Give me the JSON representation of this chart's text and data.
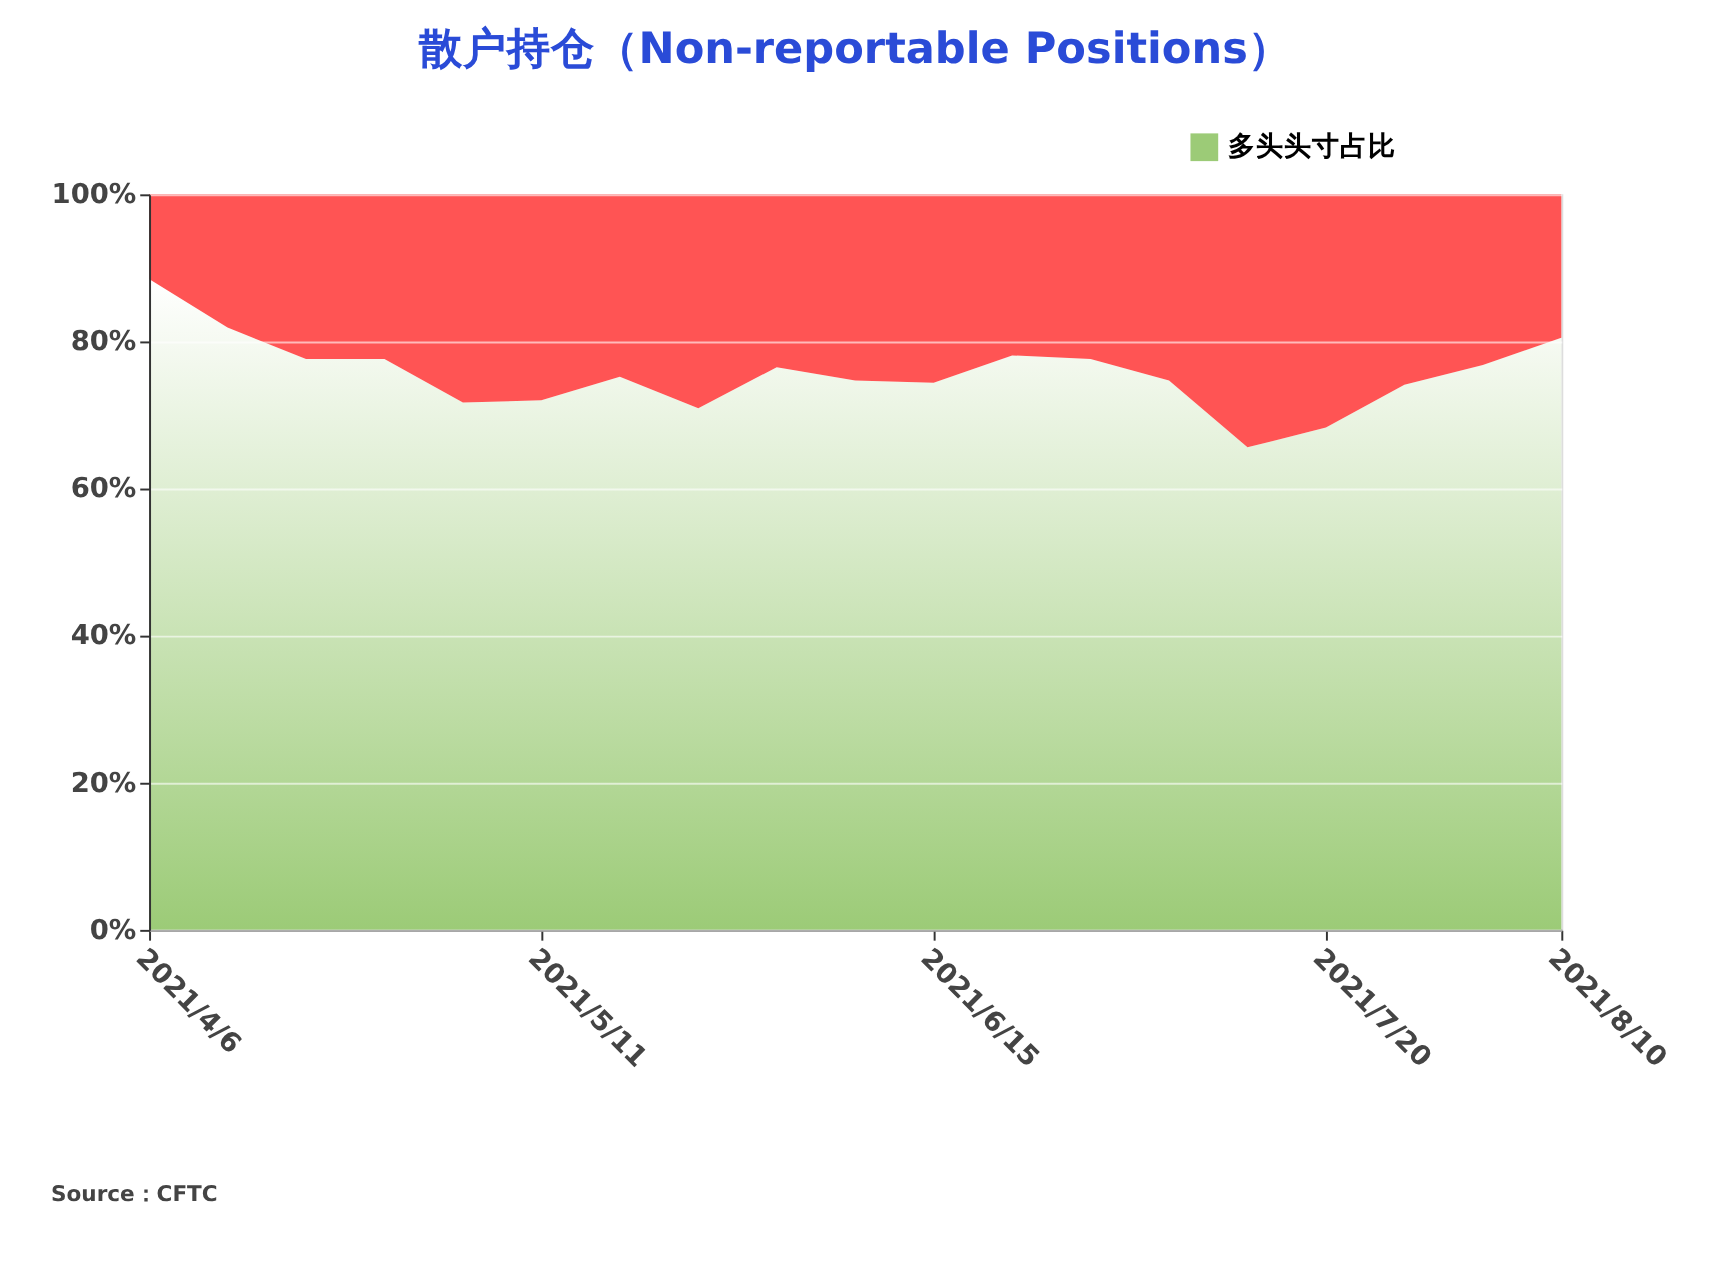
{
  "chart_data": {
    "type": "area",
    "title": "散户持仓（Non-reportable Positions）",
    "stacked": true,
    "x": [
      "2021-04-06",
      "2021-04-13",
      "2021-04-20",
      "2021-04-27",
      "2021-05-04",
      "2021-05-11",
      "2021-05-18",
      "2021-05-25",
      "2021-06-01",
      "2021-06-08",
      "2021-06-15",
      "2021-06-22",
      "2021-06-29",
      "2021-07-06",
      "2021-07-13",
      "2021-07-20",
      "2021-07-27",
      "2021-08-03",
      "2021-08-10"
    ],
    "series": [
      {
        "name": "多头头寸占比",
        "color": "#9ccb77",
        "values": [
          88.5,
          81.9,
          77.6,
          77.6,
          71.7,
          72,
          75.2,
          70.9,
          76.5,
          74.7,
          74.4,
          78.1,
          77.6,
          74.7,
          65.6,
          68.3,
          74.1,
          76.8,
          80.5
        ]
      },
      {
        "color": "#ff5454",
        "values": [
          11.5,
          18.1,
          22.4,
          22.4,
          28.3,
          28,
          24.8,
          29.1,
          23.5,
          25.3,
          25.6,
          21.9,
          22.4,
          25.3,
          34.4,
          31.7,
          25.9,
          23.2,
          19.5
        ]
      }
    ],
    "xlim": [
      "2021-04-06",
      "2021-08-10"
    ],
    "xticks": [
      {
        "value": "2021-04-06",
        "label": "2021/4/6"
      },
      {
        "value": "2021-05-11",
        "label": "2021/5/11"
      },
      {
        "value": "2021-06-15",
        "label": "2021/6/15"
      },
      {
        "value": "2021-07-20",
        "label": "2021/7/20"
      },
      {
        "value": "2021-08-10",
        "label": "2021/8/10"
      }
    ],
    "ylim": [
      0,
      100
    ],
    "yticks": [
      {
        "value": 0,
        "label": "0%"
      },
      {
        "value": 20,
        "label": "20%"
      },
      {
        "value": 40,
        "label": "40%"
      },
      {
        "value": 60,
        "label": "60%"
      },
      {
        "value": 80,
        "label": "80%"
      },
      {
        "value": 100,
        "label": "100%"
      }
    ],
    "grid": "y",
    "legend": "top right",
    "annotations": [
      "Source：CFTC"
    ]
  }
}
